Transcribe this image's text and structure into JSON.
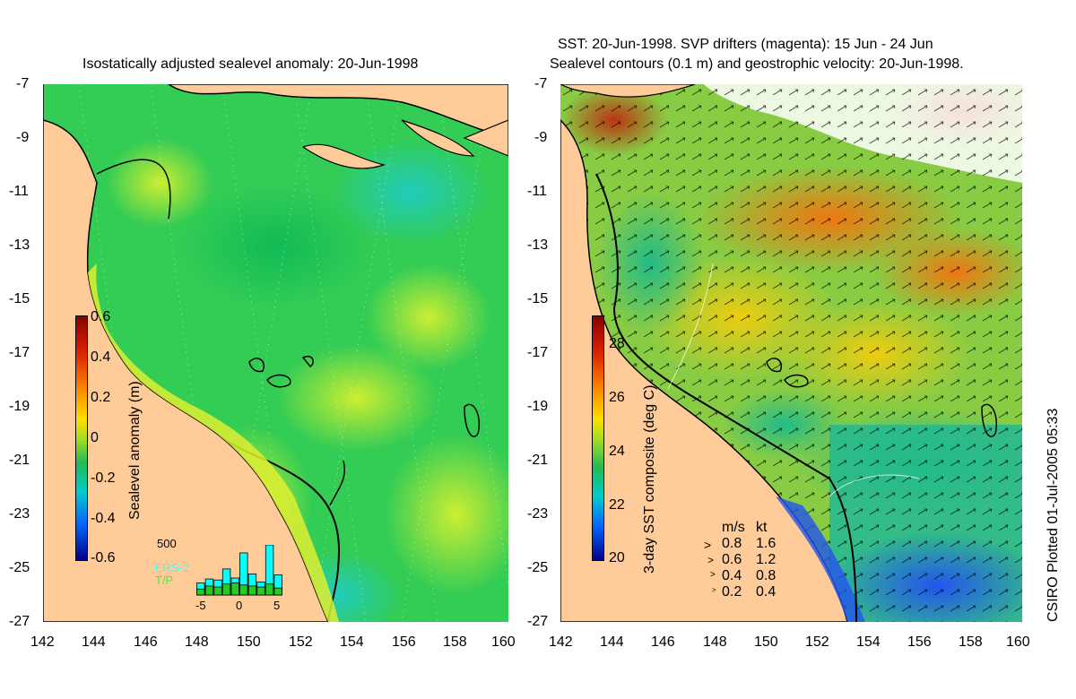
{
  "left_panel": {
    "title": "Isostatically adjusted sealevel anomaly: 20-Jun-1998",
    "colorbar": {
      "label": "Sealevel anomaly (m)",
      "ticks": [
        "0.6",
        "0.4",
        "0.2",
        "0",
        "-0.2",
        "-0.4",
        "-0.6"
      ]
    },
    "inset": {
      "max_label": "500",
      "series": [
        "ERS-2",
        "T/P"
      ],
      "x_ticks": [
        "-5",
        "0",
        "5"
      ],
      "ers2_values": [
        120,
        160,
        150,
        260,
        170,
        420,
        210,
        130,
        500,
        200
      ],
      "tp_values": [
        60,
        90,
        80,
        110,
        120,
        100,
        90,
        80,
        110,
        70
      ],
      "colors": {
        "ers2": "#00ffff",
        "tp": "#22cc22"
      }
    }
  },
  "right_panel": {
    "title_line1": "SST: 20-Jun-1998. SVP drifters (magenta): 15 Jun - 24 Jun",
    "title_line2": "Sealevel contours (0.1 m) and geostrophic velocity: 20-Jun-1998.",
    "colorbar": {
      "label": "3-day SST composite (deg C)",
      "ticks": [
        "28",
        "26",
        "24",
        "22",
        "20"
      ]
    },
    "velocity_legend": {
      "header_ms": "m/s",
      "header_kt": "kt",
      "rows": [
        {
          "ms": "0.8",
          "kt": "1.6"
        },
        {
          "ms": "0.6",
          "kt": "1.2"
        },
        {
          "ms": "0.4",
          "kt": "0.8"
        },
        {
          "ms": "0.2",
          "kt": "0.4"
        }
      ]
    }
  },
  "axes": {
    "lat_ticks": [
      "-7",
      "-9",
      "-11",
      "-13",
      "-15",
      "-17",
      "-19",
      "-21",
      "-23",
      "-25",
      "-27"
    ],
    "lon_ticks": [
      "142",
      "144",
      "146",
      "148",
      "150",
      "152",
      "154",
      "156",
      "158",
      "160"
    ]
  },
  "credit": "CSIRO Plotted 01-Jul-2005 05:33",
  "colors": {
    "land": "#ffcc99",
    "ocean_base": "#22cc44",
    "coast": "#000000"
  }
}
